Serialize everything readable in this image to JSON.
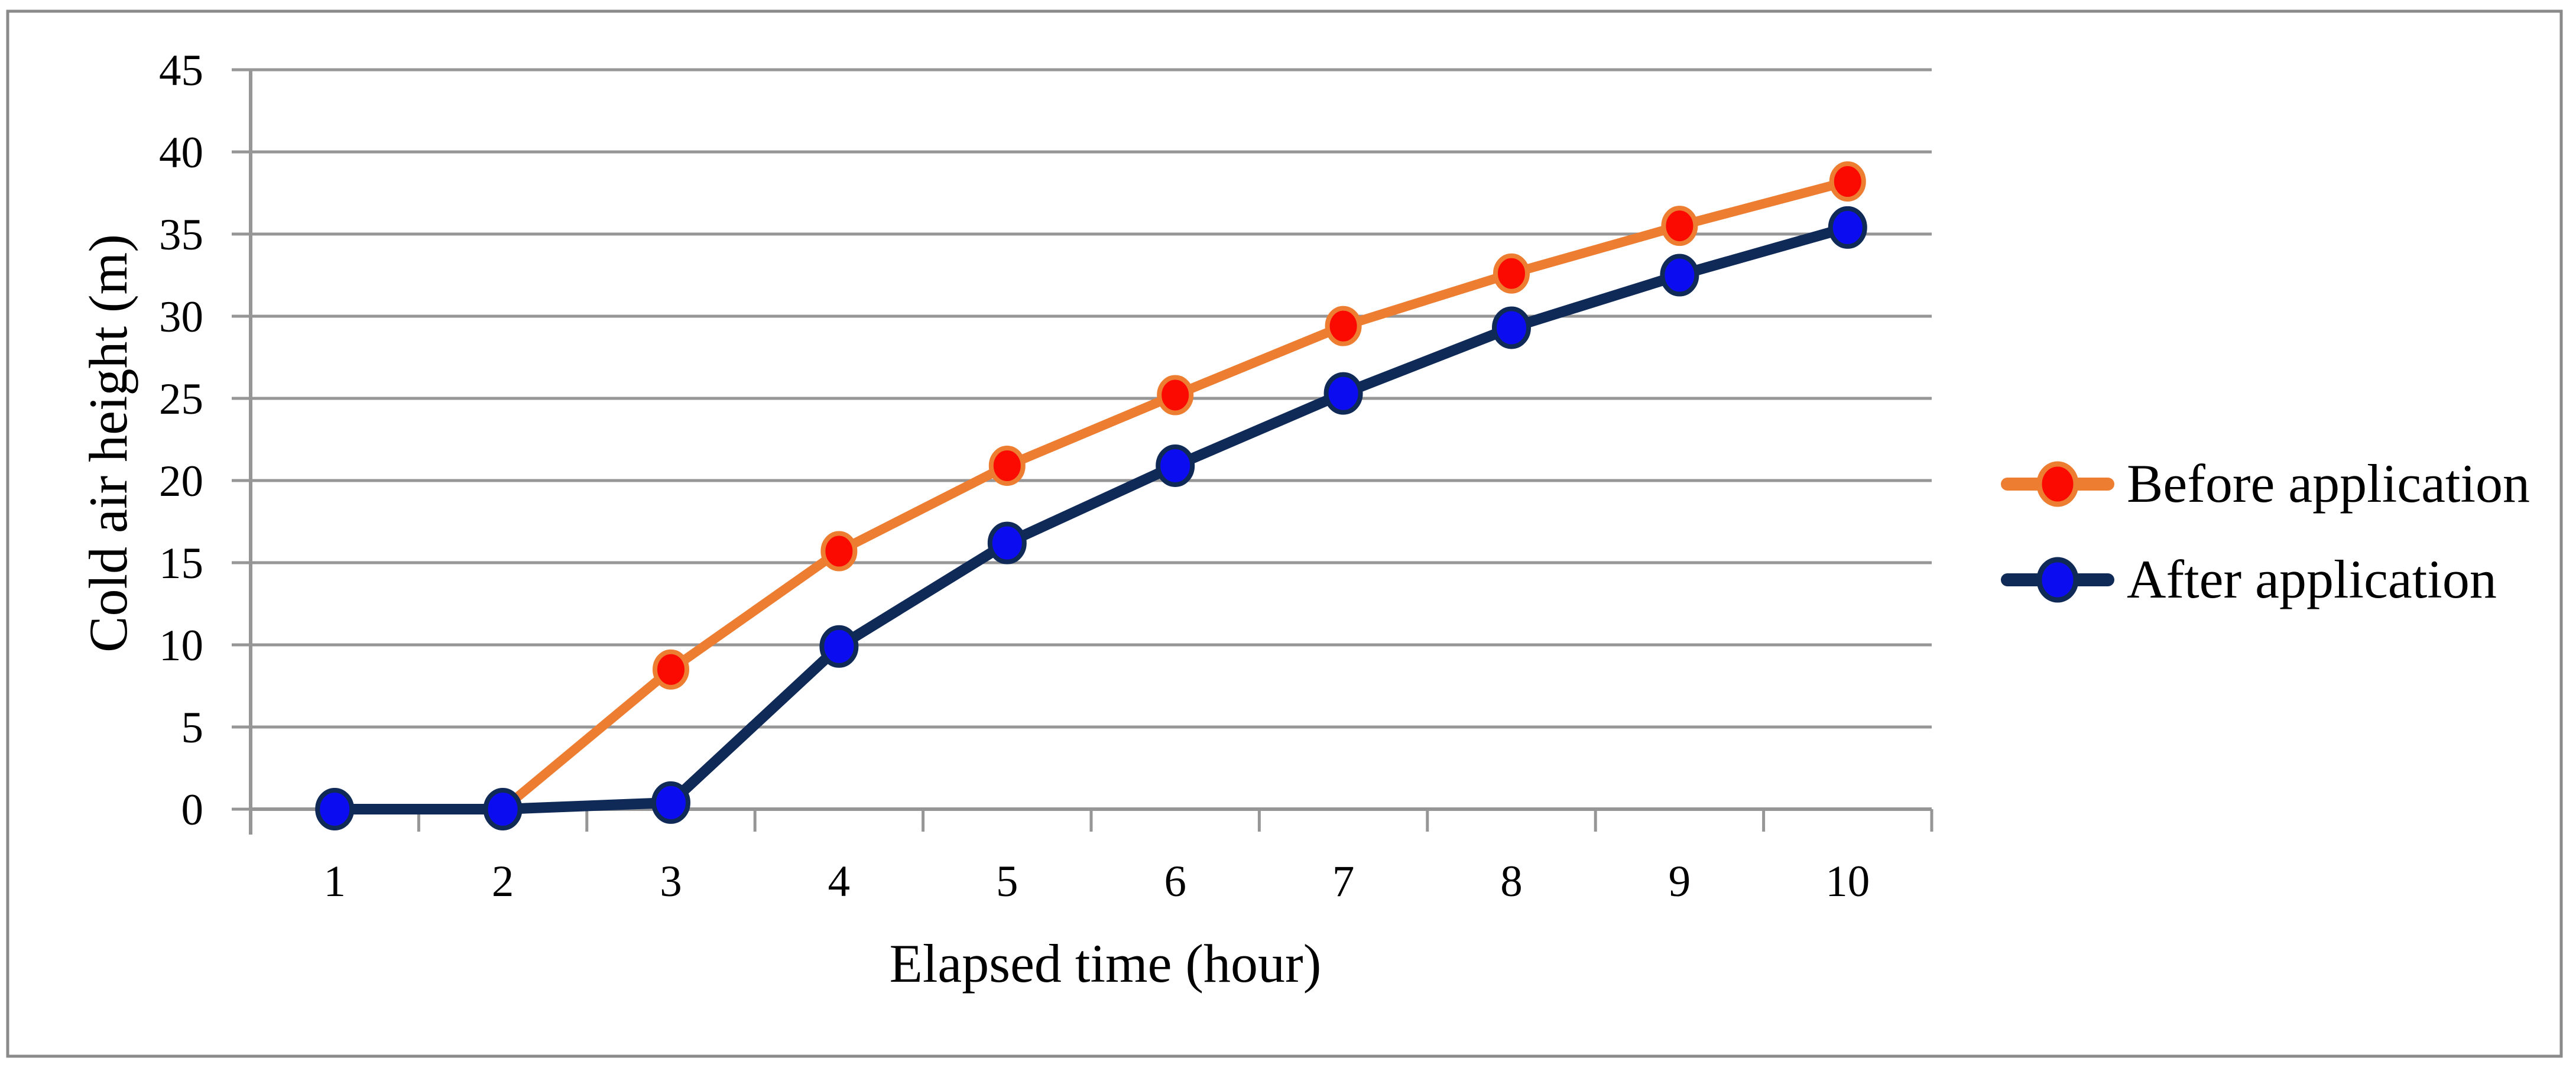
{
  "figure": {
    "background_color": "#FFFFFF",
    "border_color": "#8A8A8A",
    "text_color": "#000000",
    "grid_color": "#969696"
  },
  "chart_data": {
    "type": "line",
    "title": "",
    "xlabel": "Elapsed time (hour)",
    "ylabel": "Cold air height (m)",
    "categories": [
      1,
      2,
      3,
      4,
      5,
      6,
      7,
      8,
      9,
      10
    ],
    "yticks": [
      0,
      5,
      10,
      15,
      20,
      25,
      30,
      35,
      40,
      45
    ],
    "ylim": [
      0,
      45
    ],
    "grid": true,
    "legend_position": "right",
    "series": [
      {
        "name": "Before application",
        "values": [
          0,
          0,
          8.5,
          15.7,
          20.9,
          25.2,
          29.4,
          32.6,
          35.5,
          38.2
        ],
        "line_color": "#ED7D31",
        "marker_fill": "#FB0A01",
        "marker_stroke": "#ED7D31"
      },
      {
        "name": "After application",
        "values": [
          0,
          0,
          0.4,
          9.9,
          16.2,
          20.9,
          25.3,
          29.3,
          32.5,
          35.4
        ],
        "line_color": "#102A58",
        "marker_fill": "#0C0CF0",
        "marker_stroke": "#102A58"
      }
    ]
  }
}
